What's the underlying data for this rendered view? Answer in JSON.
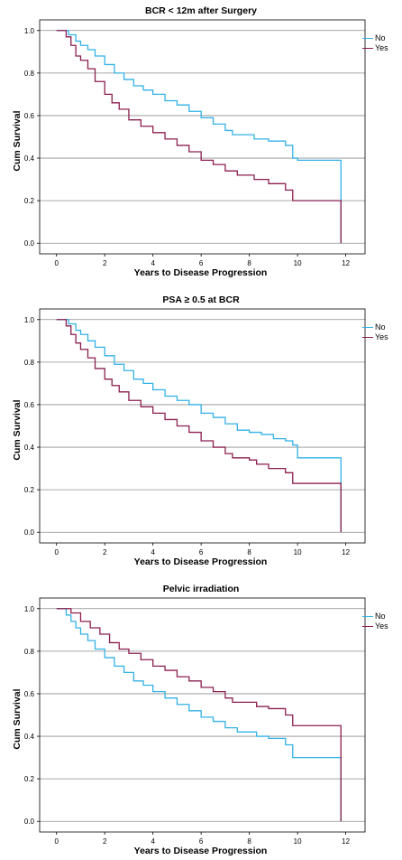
{
  "chart_data": [
    {
      "type": "line",
      "title": "BCR < 12m after Surgery",
      "xlabel": "Years to Disease Progression",
      "ylabel": "Cum Survival",
      "xlim": [
        -0.7,
        12.8
      ],
      "ylim": [
        -0.05,
        1.05
      ],
      "xticks": [
        "0",
        "2",
        "4",
        "6",
        "8",
        "10",
        "12"
      ],
      "yticks": [
        "0.0",
        "0.2",
        "0.4",
        "0.6",
        "0.8",
        "1.0"
      ],
      "grid": "horizontal",
      "legend_position": "top-right",
      "series": [
        {
          "name": "No",
          "color": "#33b1e6",
          "points": [
            [
              0,
              1
            ],
            [
              0.3,
              1
            ],
            [
              0.5,
              0.98
            ],
            [
              0.8,
              0.95
            ],
            [
              1,
              0.93
            ],
            [
              1.3,
              0.91
            ],
            [
              1.6,
              0.88
            ],
            [
              2,
              0.84
            ],
            [
              2.4,
              0.8
            ],
            [
              2.8,
              0.77
            ],
            [
              3.2,
              0.74
            ],
            [
              3.6,
              0.72
            ],
            [
              4,
              0.7
            ],
            [
              4.5,
              0.67
            ],
            [
              5,
              0.65
            ],
            [
              5.5,
              0.62
            ],
            [
              6,
              0.59
            ],
            [
              6.5,
              0.56
            ],
            [
              7,
              0.53
            ],
            [
              7.3,
              0.51
            ],
            [
              8,
              0.51
            ],
            [
              8.2,
              0.49
            ],
            [
              8.8,
              0.48
            ],
            [
              9.5,
              0.46
            ],
            [
              9.8,
              0.4
            ],
            [
              10,
              0.39
            ],
            [
              11.8,
              0.39
            ],
            [
              11.8,
              0.0
            ]
          ]
        },
        {
          "name": "Yes",
          "color": "#8b1f4f",
          "points": [
            [
              0,
              1
            ],
            [
              0.2,
              1
            ],
            [
              0.4,
              0.97
            ],
            [
              0.6,
              0.93
            ],
            [
              0.8,
              0.88
            ],
            [
              1,
              0.86
            ],
            [
              1.3,
              0.82
            ],
            [
              1.6,
              0.76
            ],
            [
              2,
              0.7
            ],
            [
              2.3,
              0.66
            ],
            [
              2.6,
              0.63
            ],
            [
              3,
              0.58
            ],
            [
              3.5,
              0.55
            ],
            [
              4,
              0.52
            ],
            [
              4.5,
              0.49
            ],
            [
              5,
              0.46
            ],
            [
              5.5,
              0.43
            ],
            [
              6,
              0.39
            ],
            [
              6.5,
              0.37
            ],
            [
              7,
              0.34
            ],
            [
              7.5,
              0.32
            ],
            [
              8,
              0.32
            ],
            [
              8.2,
              0.3
            ],
            [
              8.8,
              0.28
            ],
            [
              9.5,
              0.25
            ],
            [
              9.8,
              0.2
            ],
            [
              11.8,
              0.2
            ],
            [
              11.8,
              0.0
            ]
          ]
        }
      ]
    },
    {
      "type": "line",
      "title": "PSA ≥ 0.5 at BCR",
      "xlabel": "Years to Disease Progression",
      "ylabel": "Cum Survival",
      "xlim": [
        -0.7,
        12.8
      ],
      "ylim": [
        -0.05,
        1.05
      ],
      "xticks": [
        "0",
        "2",
        "4",
        "6",
        "8",
        "10",
        "12"
      ],
      "yticks": [
        "0.0",
        "0.2",
        "0.4",
        "0.6",
        "0.8",
        "1.0"
      ],
      "grid": "horizontal",
      "legend_position": "top-right",
      "series": [
        {
          "name": "No",
          "color": "#33b1e6",
          "points": [
            [
              0,
              1
            ],
            [
              0.3,
              1
            ],
            [
              0.5,
              0.98
            ],
            [
              0.8,
              0.95
            ],
            [
              1,
              0.93
            ],
            [
              1.3,
              0.9
            ],
            [
              1.6,
              0.87
            ],
            [
              2,
              0.83
            ],
            [
              2.4,
              0.79
            ],
            [
              2.8,
              0.76
            ],
            [
              3.2,
              0.72
            ],
            [
              3.6,
              0.7
            ],
            [
              4,
              0.67
            ],
            [
              4.5,
              0.64
            ],
            [
              5,
              0.62
            ],
            [
              5.5,
              0.6
            ],
            [
              6,
              0.56
            ],
            [
              6.5,
              0.54
            ],
            [
              7,
              0.51
            ],
            [
              7.5,
              0.48
            ],
            [
              8,
              0.47
            ],
            [
              8.5,
              0.46
            ],
            [
              9,
              0.44
            ],
            [
              9.5,
              0.43
            ],
            [
              9.8,
              0.41
            ],
            [
              10,
              0.35
            ],
            [
              11.8,
              0.35
            ],
            [
              11.8,
              0.0
            ]
          ]
        },
        {
          "name": "Yes",
          "color": "#8b1f4f",
          "points": [
            [
              0,
              1
            ],
            [
              0.2,
              1
            ],
            [
              0.4,
              0.97
            ],
            [
              0.6,
              0.93
            ],
            [
              0.8,
              0.89
            ],
            [
              1,
              0.86
            ],
            [
              1.3,
              0.82
            ],
            [
              1.6,
              0.77
            ],
            [
              2,
              0.72
            ],
            [
              2.3,
              0.69
            ],
            [
              2.6,
              0.66
            ],
            [
              3,
              0.62
            ],
            [
              3.5,
              0.59
            ],
            [
              4,
              0.56
            ],
            [
              4.5,
              0.53
            ],
            [
              5,
              0.5
            ],
            [
              5.5,
              0.47
            ],
            [
              6,
              0.43
            ],
            [
              6.5,
              0.4
            ],
            [
              7,
              0.37
            ],
            [
              7.3,
              0.35
            ],
            [
              8,
              0.34
            ],
            [
              8.3,
              0.32
            ],
            [
              8.8,
              0.3
            ],
            [
              9.5,
              0.28
            ],
            [
              9.8,
              0.23
            ],
            [
              11.8,
              0.23
            ],
            [
              11.8,
              0.0
            ]
          ]
        }
      ]
    },
    {
      "type": "line",
      "title": "Pelvic irradiation",
      "xlabel": "Years to Disease Progression",
      "ylabel": "Cum Survival",
      "xlim": [
        -0.7,
        12.8
      ],
      "ylim": [
        -0.05,
        1.05
      ],
      "xticks": [
        "0",
        "2",
        "4",
        "6",
        "8",
        "10",
        "12"
      ],
      "yticks": [
        "0.0",
        "0.2",
        "0.4",
        "0.6",
        "0.8",
        "1.0"
      ],
      "grid": "horizontal",
      "legend_position": "top-right",
      "series": [
        {
          "name": "No",
          "color": "#33b1e6",
          "points": [
            [
              0,
              1
            ],
            [
              0.2,
              1
            ],
            [
              0.4,
              0.97
            ],
            [
              0.6,
              0.94
            ],
            [
              0.8,
              0.91
            ],
            [
              1,
              0.88
            ],
            [
              1.3,
              0.85
            ],
            [
              1.6,
              0.81
            ],
            [
              2,
              0.77
            ],
            [
              2.4,
              0.73
            ],
            [
              2.8,
              0.7
            ],
            [
              3.2,
              0.66
            ],
            [
              3.6,
              0.64
            ],
            [
              4,
              0.61
            ],
            [
              4.5,
              0.58
            ],
            [
              5,
              0.55
            ],
            [
              5.5,
              0.52
            ],
            [
              6,
              0.49
            ],
            [
              6.5,
              0.47
            ],
            [
              7,
              0.44
            ],
            [
              7.5,
              0.42
            ],
            [
              8,
              0.42
            ],
            [
              8.3,
              0.4
            ],
            [
              8.8,
              0.39
            ],
            [
              9.5,
              0.36
            ],
            [
              9.8,
              0.3
            ],
            [
              11.8,
              0.3
            ],
            [
              11.8,
              0.0
            ]
          ]
        },
        {
          "name": "Yes",
          "color": "#8b1f4f",
          "points": [
            [
              0,
              1
            ],
            [
              0.3,
              1
            ],
            [
              0.6,
              0.98
            ],
            [
              1,
              0.94
            ],
            [
              1.4,
              0.91
            ],
            [
              1.8,
              0.88
            ],
            [
              2.2,
              0.84
            ],
            [
              2.6,
              0.81
            ],
            [
              3,
              0.79
            ],
            [
              3.5,
              0.76
            ],
            [
              4,
              0.73
            ],
            [
              4.5,
              0.71
            ],
            [
              5,
              0.68
            ],
            [
              5.5,
              0.66
            ],
            [
              6,
              0.63
            ],
            [
              6.5,
              0.61
            ],
            [
              7,
              0.58
            ],
            [
              7.3,
              0.56
            ],
            [
              8,
              0.56
            ],
            [
              8.3,
              0.54
            ],
            [
              8.8,
              0.53
            ],
            [
              9.5,
              0.5
            ],
            [
              9.8,
              0.45
            ],
            [
              11.8,
              0.45
            ],
            [
              11.8,
              0.0
            ]
          ]
        }
      ]
    }
  ]
}
